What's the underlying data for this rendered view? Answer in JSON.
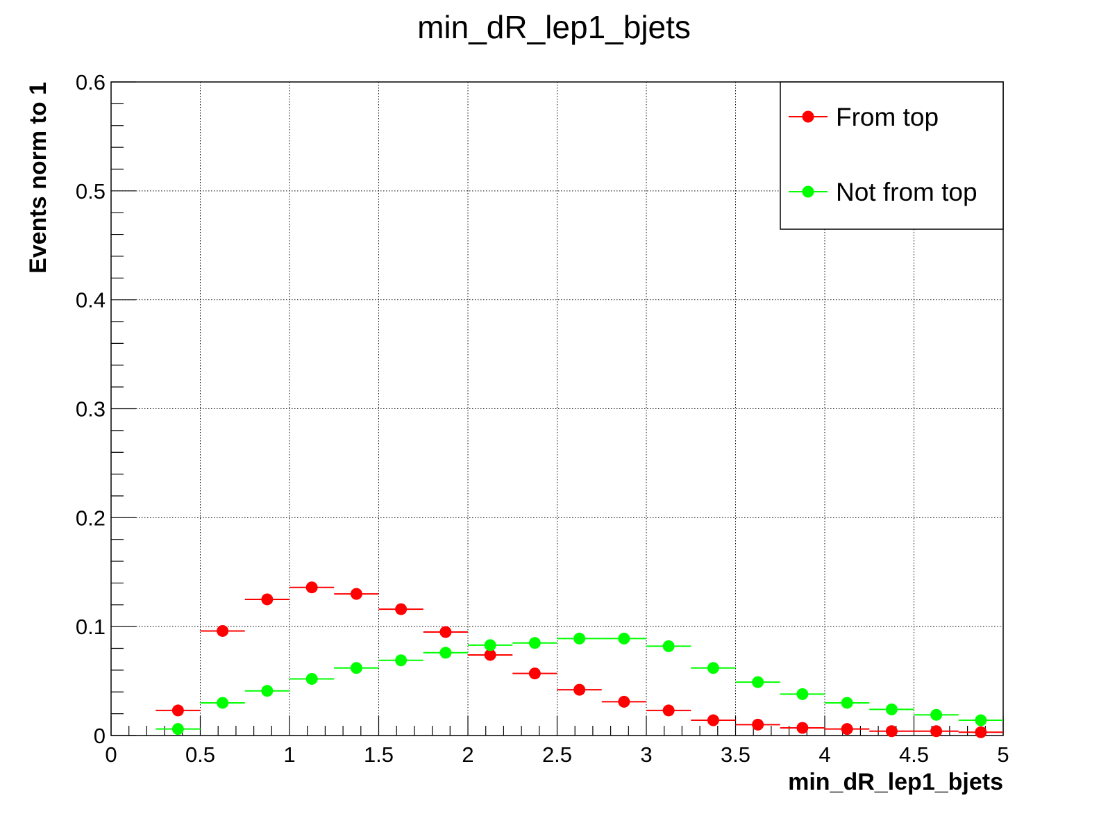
{
  "chart_data": {
    "type": "scatter",
    "title": "min_dR_lep1_bjets",
    "xlabel": "min_dR_lep1_bjets",
    "ylabel": "Events norm to 1",
    "xlim": [
      0,
      5
    ],
    "ylim": [
      0,
      0.6
    ],
    "x_ticks": [
      "0",
      "0.5",
      "1",
      "1.5",
      "2",
      "2.5",
      "3",
      "3.5",
      "4",
      "4.5",
      "5"
    ],
    "y_ticks": [
      "0",
      "0.1",
      "0.2",
      "0.3",
      "0.4",
      "0.5",
      "0.6"
    ],
    "grid": true,
    "legend_position": "top-right",
    "bin_width": 0.25,
    "x": [
      0.375,
      0.625,
      0.875,
      1.125,
      1.375,
      1.625,
      1.875,
      2.125,
      2.375,
      2.625,
      2.875,
      3.125,
      3.375,
      3.625,
      3.875,
      4.125,
      4.375,
      4.625,
      4.875
    ],
    "series": [
      {
        "name": "From top",
        "color": "#ff0000",
        "values": [
          0.023,
          0.096,
          0.125,
          0.136,
          0.13,
          0.116,
          0.095,
          0.074,
          0.057,
          0.042,
          0.031,
          0.023,
          0.014,
          0.01,
          0.007,
          0.006,
          0.004,
          0.004,
          0.003
        ]
      },
      {
        "name": "Not from top",
        "color": "#00ff00",
        "values": [
          0.006,
          0.03,
          0.041,
          0.052,
          0.062,
          0.069,
          0.076,
          0.083,
          0.085,
          0.089,
          0.089,
          0.082,
          0.062,
          0.049,
          0.038,
          0.03,
          0.024,
          0.019,
          0.014
        ]
      }
    ]
  }
}
